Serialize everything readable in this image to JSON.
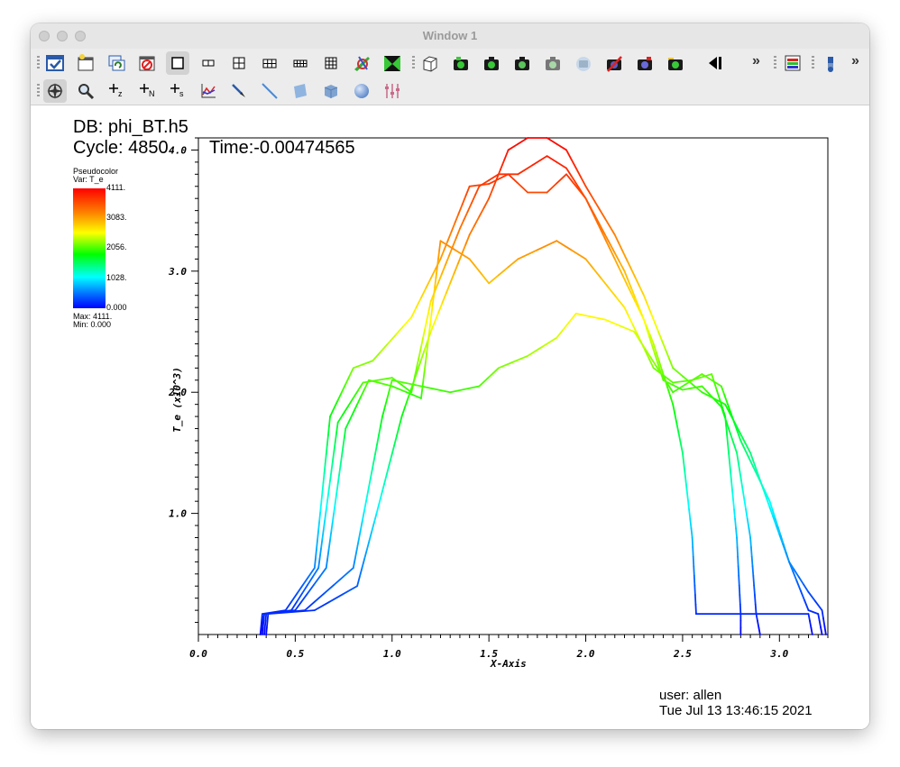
{
  "window": {
    "title": "Window 1"
  },
  "toolbar1": {
    "icons": [
      "select-all-icon",
      "new-window-icon",
      "clone-window-icon",
      "delete-window-icon",
      "layout-1x1-icon",
      "layout-1x2-icon",
      "layout-2x2-icon",
      "layout-2x3-icon",
      "layout-2x4-icon",
      "layout-3x3-icon",
      "lock-view-icon",
      "invert-view-icon",
      "box-3d-icon",
      "camera-green-icon",
      "camera-save-icon",
      "camera-icon",
      "camera-grey-icon",
      "camera-globe-icon",
      "camera-disabled-icon",
      "camera-dark-icon",
      "camera-clear-icon",
      "animation-reverse-icon"
    ],
    "overflow_label": "»",
    "overflow2_label": "»"
  },
  "toolbar2": {
    "icons": [
      "navigate-icon",
      "zoom-icon",
      "zone-pick-icon",
      "node-pick-icon",
      "spreadsheet-pick-icon",
      "curve-plot-icon",
      "lineout-icon",
      "line-tool-icon",
      "plane-tool-icon",
      "box-tool-icon",
      "sphere-tool-icon",
      "sliders-icon"
    ],
    "pick_labels": [
      "z",
      "N",
      "s"
    ]
  },
  "plot": {
    "db_label": "DB: phi_BT.h5",
    "cycle_label": "Cycle: 4850",
    "time_label": "Time:-0.00474565",
    "legend": {
      "title": "Pseudocolor",
      "var": "Var: T_e",
      "ticks": [
        "4111.",
        "3083.",
        "2056.",
        "1028.",
        "0.000"
      ],
      "max": "Max:  4111.",
      "min": "Min:  0.000"
    },
    "xlabel": "X-Axis",
    "ylabel": "T_e  (x10^3)",
    "user": "user: allen",
    "date": "Tue Jul 13 13:46:15 2021"
  },
  "chart_data": {
    "type": "line",
    "xlim": [
      0.0,
      3.25
    ],
    "ylim": [
      0.0,
      4.1
    ],
    "x_ticks": [
      "0.0",
      "0.5",
      "1.0",
      "1.5",
      "2.0",
      "2.5",
      "3.0"
    ],
    "y_ticks": [
      "1.0",
      "2.0",
      "3.0",
      "4.0"
    ],
    "color_scale": {
      "min": 0,
      "max": 4111,
      "colormap": "hot-to-cold"
    },
    "series": [
      {
        "points": [
          [
            0.32,
            0.0
          ],
          [
            0.33,
            0.17
          ],
          [
            0.45,
            0.2
          ],
          [
            0.6,
            0.55
          ],
          [
            0.68,
            1.8
          ],
          [
            0.8,
            2.2
          ],
          [
            0.9,
            2.26
          ],
          [
            1.1,
            2.62
          ],
          [
            1.25,
            3.1
          ],
          [
            1.4,
            3.7
          ],
          [
            1.5,
            3.72
          ],
          [
            1.6,
            3.8
          ],
          [
            1.7,
            3.65
          ],
          [
            1.8,
            3.65
          ],
          [
            1.9,
            3.8
          ],
          [
            2.0,
            3.6
          ],
          [
            2.15,
            3.1
          ],
          [
            2.3,
            2.6
          ],
          [
            2.4,
            2.1
          ],
          [
            2.5,
            2.02
          ],
          [
            2.6,
            2.05
          ],
          [
            2.7,
            1.88
          ],
          [
            2.78,
            1.5
          ],
          [
            2.85,
            0.8
          ],
          [
            2.88,
            0.17
          ],
          [
            2.9,
            0.0
          ]
        ]
      },
      {
        "points": [
          [
            0.32,
            0.0
          ],
          [
            0.34,
            0.17
          ],
          [
            0.48,
            0.2
          ],
          [
            0.62,
            0.55
          ],
          [
            0.72,
            1.75
          ],
          [
            0.85,
            2.08
          ],
          [
            1.0,
            2.12
          ],
          [
            1.1,
            2.0
          ],
          [
            1.2,
            2.75
          ],
          [
            1.35,
            3.35
          ],
          [
            1.45,
            3.7
          ],
          [
            1.55,
            3.8
          ],
          [
            1.65,
            3.8
          ],
          [
            1.8,
            3.95
          ],
          [
            1.9,
            3.85
          ],
          [
            2.0,
            3.6
          ],
          [
            2.2,
            3.0
          ],
          [
            2.35,
            2.4
          ],
          [
            2.45,
            1.9
          ],
          [
            2.5,
            1.5
          ],
          [
            2.55,
            0.8
          ],
          [
            2.57,
            0.17
          ],
          [
            2.8,
            0.17
          ],
          [
            2.8,
            0.0
          ]
        ]
      },
      {
        "points": [
          [
            0.33,
            0.0
          ],
          [
            0.34,
            0.17
          ],
          [
            0.5,
            0.2
          ],
          [
            0.66,
            0.55
          ],
          [
            0.76,
            1.7
          ],
          [
            0.88,
            2.1
          ],
          [
            1.0,
            2.05
          ],
          [
            1.15,
            1.95
          ],
          [
            1.25,
            3.25
          ],
          [
            1.4,
            3.1
          ],
          [
            1.5,
            2.9
          ],
          [
            1.65,
            3.1
          ],
          [
            1.85,
            3.25
          ],
          [
            2.0,
            3.1
          ],
          [
            2.2,
            2.7
          ],
          [
            2.35,
            2.2
          ],
          [
            2.45,
            2.08
          ],
          [
            2.55,
            2.1
          ],
          [
            2.65,
            2.15
          ],
          [
            2.72,
            1.8
          ],
          [
            2.78,
            0.8
          ],
          [
            2.8,
            0.17
          ],
          [
            3.15,
            0.17
          ],
          [
            3.17,
            0.0
          ]
        ]
      },
      {
        "points": [
          [
            0.34,
            0.0
          ],
          [
            0.35,
            0.17
          ],
          [
            0.55,
            0.2
          ],
          [
            0.8,
            0.55
          ],
          [
            0.95,
            1.8
          ],
          [
            1.0,
            2.1
          ],
          [
            1.15,
            2.05
          ],
          [
            1.3,
            2.0
          ],
          [
            1.45,
            2.05
          ],
          [
            1.55,
            2.2
          ],
          [
            1.7,
            2.3
          ],
          [
            1.85,
            2.45
          ],
          [
            1.95,
            2.65
          ],
          [
            2.1,
            2.6
          ],
          [
            2.25,
            2.5
          ],
          [
            2.45,
            2.0
          ],
          [
            2.6,
            2.15
          ],
          [
            2.7,
            2.05
          ],
          [
            2.8,
            1.6
          ],
          [
            2.95,
            1.1
          ],
          [
            3.05,
            0.6
          ],
          [
            3.15,
            0.2
          ],
          [
            3.2,
            0.17
          ],
          [
            3.22,
            0.0
          ]
        ]
      },
      {
        "points": [
          [
            0.35,
            0.0
          ],
          [
            0.36,
            0.17
          ],
          [
            0.6,
            0.2
          ],
          [
            0.82,
            0.4
          ],
          [
            0.92,
            1.0
          ],
          [
            1.05,
            1.8
          ],
          [
            1.2,
            2.5
          ],
          [
            1.4,
            3.3
          ],
          [
            1.5,
            3.6
          ],
          [
            1.6,
            4.0
          ],
          [
            1.7,
            4.1
          ],
          [
            1.8,
            4.1
          ],
          [
            1.9,
            4.0
          ],
          [
            2.0,
            3.7
          ],
          [
            2.15,
            3.3
          ],
          [
            2.3,
            2.8
          ],
          [
            2.45,
            2.2
          ],
          [
            2.6,
            2.0
          ],
          [
            2.72,
            1.9
          ],
          [
            2.85,
            1.5
          ],
          [
            2.95,
            1.05
          ],
          [
            3.05,
            0.6
          ],
          [
            3.15,
            0.35
          ],
          [
            3.22,
            0.2
          ],
          [
            3.24,
            0.0
          ]
        ]
      }
    ]
  }
}
